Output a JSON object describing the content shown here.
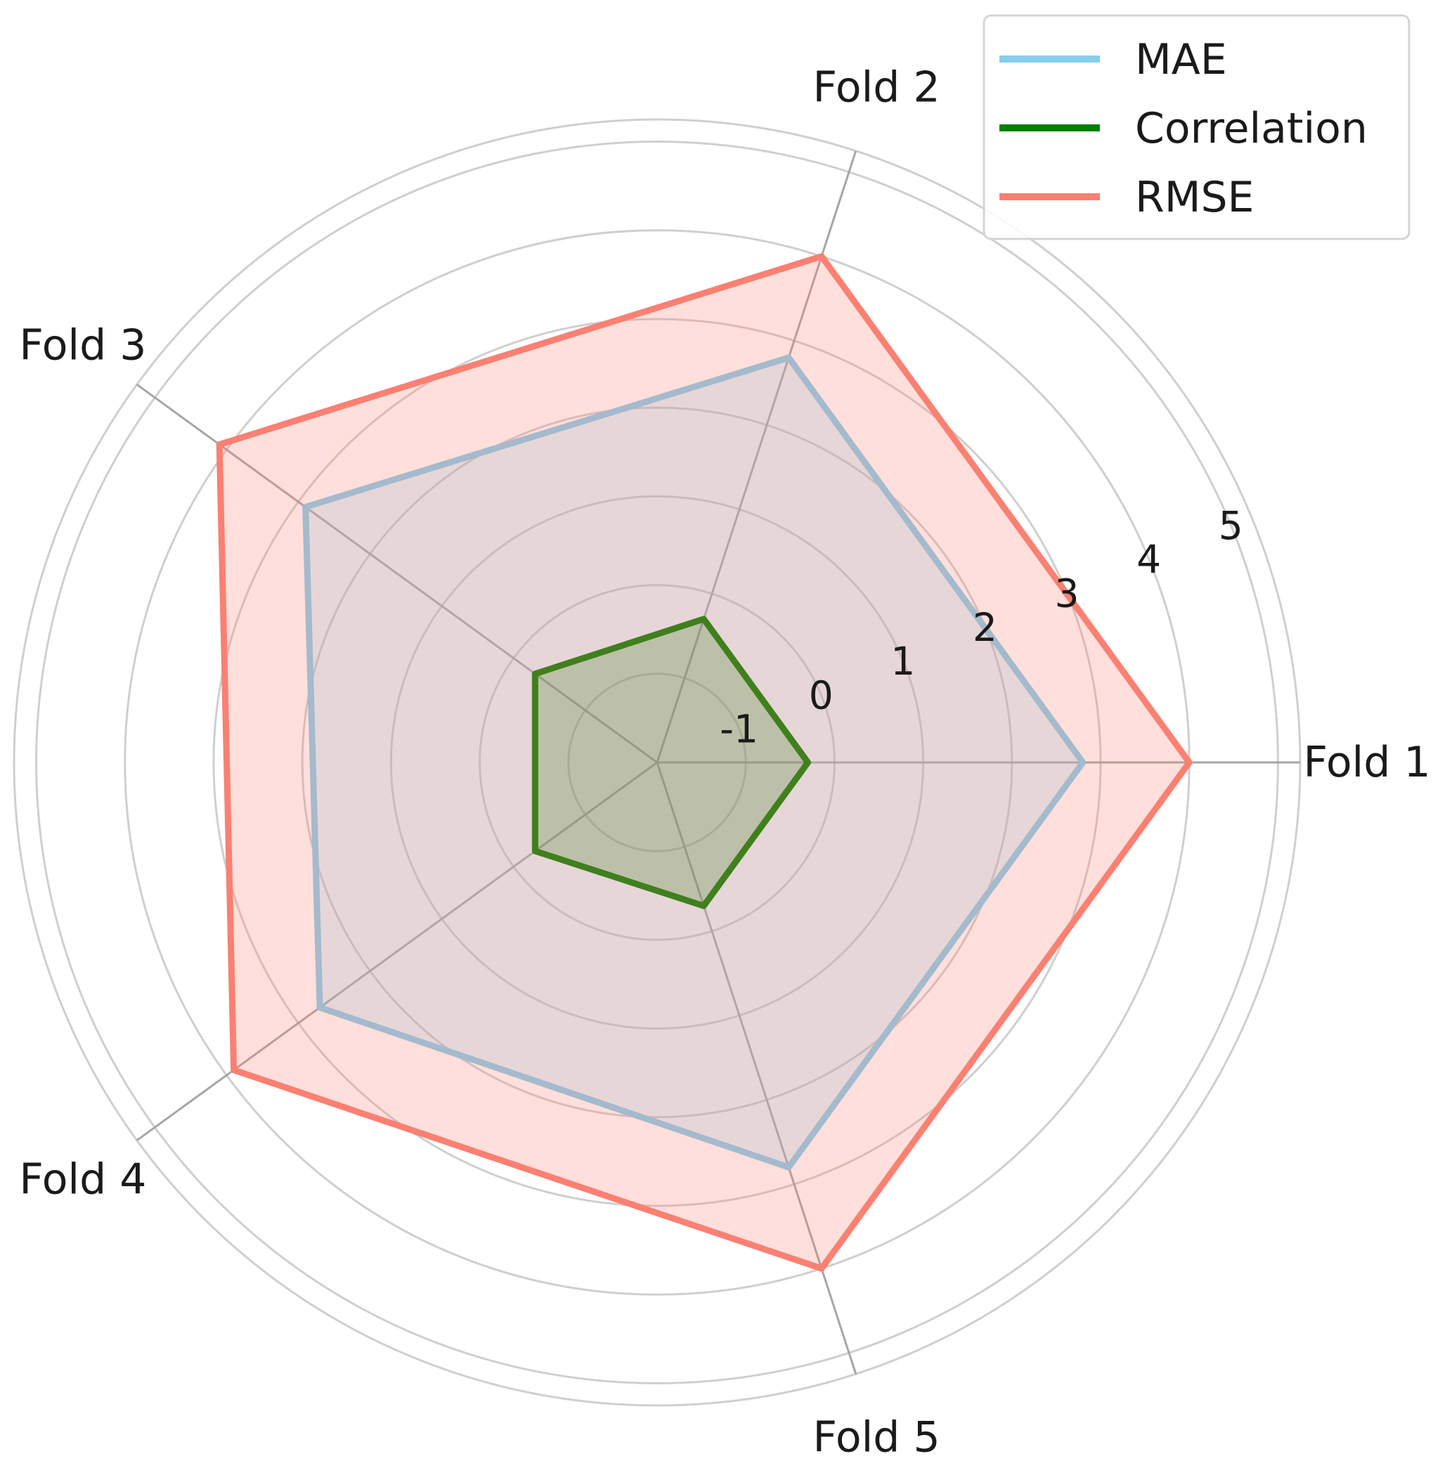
{
  "chart_data": {
    "type": "radar",
    "categories": [
      "Fold 1",
      "Fold 2",
      "Fold 3",
      "Fold 4",
      "Fold 5"
    ],
    "rticks": [
      "-1",
      "0",
      "1",
      "2",
      "3",
      "4",
      "5"
    ],
    "rlim": [
      -2,
      5.25
    ],
    "series": [
      {
        "name": "MAE",
        "values": [
          2.8,
          2.8,
          2.9,
          2.7,
          2.8
        ],
        "color": "#87ceeb"
      },
      {
        "name": "Correlation",
        "values": [
          -0.3,
          -0.3,
          -0.3,
          -0.3,
          -0.3
        ],
        "color": "#008000"
      },
      {
        "name": "RMSE",
        "values": [
          4.0,
          4.0,
          4.1,
          3.9,
          4.0
        ],
        "color": "#fa8072"
      }
    ],
    "legend_position": "top-right",
    "grid": true
  }
}
